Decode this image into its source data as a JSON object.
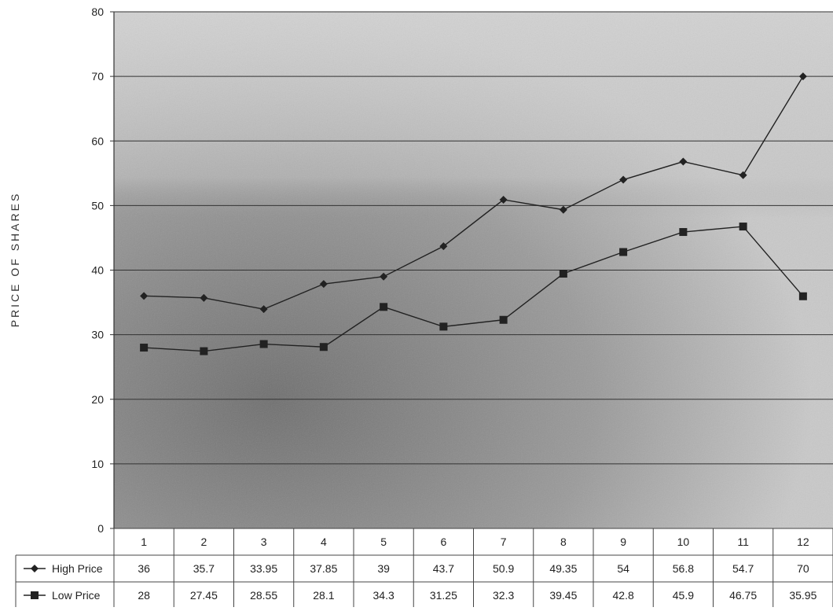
{
  "chart_data": {
    "type": "line",
    "ylabel": "PRICE OF SHARES",
    "xlabel": "",
    "title": "",
    "ylim": [
      0,
      80
    ],
    "yticks": [
      0,
      10,
      20,
      30,
      40,
      50,
      60,
      70,
      80
    ],
    "grid": "horizontal",
    "legend": "data-table-left",
    "categories": [
      "1",
      "2",
      "3",
      "4",
      "5",
      "6",
      "7",
      "8",
      "9",
      "10",
      "11",
      "12"
    ],
    "series": [
      {
        "name": "High Price",
        "marker": "diamond",
        "values": [
          36,
          35.7,
          33.95,
          37.85,
          39,
          43.7,
          50.9,
          49.35,
          54,
          56.8,
          54.7,
          70
        ],
        "labels": [
          "36",
          "35.7",
          "33.95",
          "37.85",
          "39",
          "43.7",
          "50.9",
          "49.35",
          "54",
          "56.8",
          "54.7",
          "70"
        ]
      },
      {
        "name": "Low Price",
        "marker": "square",
        "values": [
          28,
          27.45,
          28.55,
          28.1,
          34.3,
          31.25,
          32.3,
          39.45,
          42.8,
          45.9,
          46.75,
          35.95
        ],
        "labels": [
          "28",
          "27.45",
          "28.55",
          "28.1",
          "34.3",
          "31.25",
          "32.3",
          "39.45",
          "42.8",
          "45.9",
          "46.75",
          "35.95"
        ]
      }
    ],
    "colors": {
      "line": "#222222",
      "grid": "#333333",
      "plot_bg_light": "#d6d6d6",
      "plot_bg_dark": "#8a8a8a"
    }
  }
}
